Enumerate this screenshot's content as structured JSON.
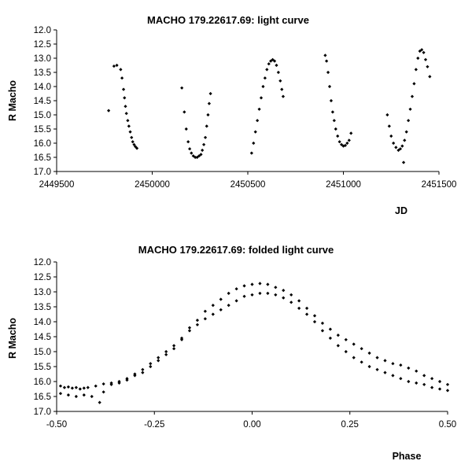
{
  "chart_data": [
    {
      "type": "scatter",
      "title": "MACHO 179.22617.69: light curve",
      "xlabel": "JD",
      "ylabel": "R Macho",
      "xlim": [
        2449500,
        2451500
      ],
      "ylim": [
        12.0,
        17.0
      ],
      "y_inverted": true,
      "grid": false,
      "legend": "none",
      "marker_color": "#000000",
      "xticks": [
        "2449500",
        "2450000",
        "2450500",
        "2451000",
        "2451500"
      ],
      "yticks": [
        "12.0",
        "12.5",
        "13.0",
        "13.5",
        "14.0",
        "14.5",
        "15.0",
        "15.5",
        "16.0",
        "16.5",
        "17.0"
      ],
      "series": [
        {
          "points": [
            [
              2449772,
              14.85
            ],
            [
              2449800,
              13.28
            ],
            [
              2449815,
              13.25
            ],
            [
              2449835,
              13.4
            ],
            [
              2449842,
              13.7
            ],
            [
              2449850,
              14.1
            ],
            [
              2449855,
              14.4
            ],
            [
              2449860,
              14.7
            ],
            [
              2449865,
              14.95
            ],
            [
              2449872,
              15.2
            ],
            [
              2449878,
              15.4
            ],
            [
              2449885,
              15.6
            ],
            [
              2449892,
              15.8
            ],
            [
              2449898,
              15.95
            ],
            [
              2449905,
              16.05
            ],
            [
              2449912,
              16.12
            ],
            [
              2449920,
              16.18
            ],
            [
              2450155,
              14.05
            ],
            [
              2450168,
              14.9
            ],
            [
              2450178,
              15.5
            ],
            [
              2450188,
              15.95
            ],
            [
              2450196,
              16.2
            ],
            [
              2450205,
              16.35
            ],
            [
              2450215,
              16.45
            ],
            [
              2450225,
              16.5
            ],
            [
              2450235,
              16.5
            ],
            [
              2450245,
              16.45
            ],
            [
              2450255,
              16.4
            ],
            [
              2450262,
              16.25
            ],
            [
              2450270,
              16.05
            ],
            [
              2450278,
              15.8
            ],
            [
              2450285,
              15.4
            ],
            [
              2450292,
              15.0
            ],
            [
              2450298,
              14.6
            ],
            [
              2450305,
              14.25
            ],
            [
              2450520,
              16.35
            ],
            [
              2450530,
              16.0
            ],
            [
              2450540,
              15.6
            ],
            [
              2450550,
              15.2
            ],
            [
              2450560,
              14.8
            ],
            [
              2450570,
              14.4
            ],
            [
              2450580,
              14.0
            ],
            [
              2450590,
              13.7
            ],
            [
              2450600,
              13.4
            ],
            [
              2450610,
              13.2
            ],
            [
              2450620,
              13.1
            ],
            [
              2450630,
              13.05
            ],
            [
              2450640,
              13.1
            ],
            [
              2450650,
              13.25
            ],
            [
              2450660,
              13.5
            ],
            [
              2450670,
              13.8
            ],
            [
              2450678,
              14.1
            ],
            [
              2450685,
              14.35
            ],
            [
              2450905,
              12.9
            ],
            [
              2450912,
              13.1
            ],
            [
              2450920,
              13.5
            ],
            [
              2450928,
              14.0
            ],
            [
              2450936,
              14.5
            ],
            [
              2450944,
              14.9
            ],
            [
              2450952,
              15.2
            ],
            [
              2450960,
              15.5
            ],
            [
              2450970,
              15.75
            ],
            [
              2450980,
              15.95
            ],
            [
              2450990,
              16.05
            ],
            [
              2451000,
              16.1
            ],
            [
              2451010,
              16.08
            ],
            [
              2451020,
              16.0
            ],
            [
              2451030,
              15.9
            ],
            [
              2451040,
              15.65
            ],
            [
              2451230,
              15.0
            ],
            [
              2451240,
              15.4
            ],
            [
              2451250,
              15.75
            ],
            [
              2451262,
              16.0
            ],
            [
              2451275,
              16.15
            ],
            [
              2451288,
              16.25
            ],
            [
              2451298,
              16.2
            ],
            [
              2451308,
              16.1
            ],
            [
              2451315,
              16.68
            ],
            [
              2451320,
              15.9
            ],
            [
              2451330,
              15.6
            ],
            [
              2451340,
              15.2
            ],
            [
              2451350,
              14.8
            ],
            [
              2451360,
              14.35
            ],
            [
              2451370,
              13.9
            ],
            [
              2451380,
              13.4
            ],
            [
              2451390,
              13.0
            ],
            [
              2451400,
              12.75
            ],
            [
              2451410,
              12.7
            ],
            [
              2451420,
              12.8
            ],
            [
              2451430,
              13.05
            ],
            [
              2451440,
              13.3
            ],
            [
              2451452,
              13.65
            ]
          ]
        }
      ]
    },
    {
      "type": "scatter",
      "title": "MACHO 179.22617.69: folded light curve",
      "xlabel": "Phase",
      "ylabel": "R Macho",
      "xlim": [
        -0.5,
        0.5
      ],
      "ylim": [
        12.0,
        17.0
      ],
      "y_inverted": true,
      "grid": false,
      "legend": "none",
      "marker_color": "#000000",
      "xticks": [
        "-0.50",
        "-0.25",
        "0.00",
        "0.25",
        "0.50"
      ],
      "yticks": [
        "12.0",
        "12.5",
        "13.0",
        "13.5",
        "14.0",
        "14.5",
        "15.0",
        "15.5",
        "16.0",
        "16.5",
        "17.0"
      ],
      "series": [
        {
          "points": [
            [
              -0.49,
              16.15
            ],
            [
              -0.48,
              16.2
            ],
            [
              -0.47,
              16.18
            ],
            [
              -0.46,
              16.22
            ],
            [
              -0.45,
              16.2
            ],
            [
              -0.44,
              16.25
            ],
            [
              -0.43,
              16.22
            ],
            [
              -0.42,
              16.2
            ],
            [
              -0.4,
              16.15
            ],
            [
              -0.38,
              16.08
            ],
            [
              -0.36,
              16.05
            ],
            [
              -0.34,
              16.0
            ],
            [
              -0.32,
              15.9
            ],
            [
              -0.3,
              15.75
            ],
            [
              -0.28,
              15.6
            ],
            [
              -0.26,
              15.4
            ],
            [
              -0.24,
              15.2
            ],
            [
              -0.22,
              15.0
            ],
            [
              -0.2,
              14.8
            ],
            [
              -0.18,
              14.55
            ],
            [
              -0.16,
              14.3
            ],
            [
              -0.14,
              14.1
            ],
            [
              -0.12,
              13.9
            ],
            [
              -0.1,
              13.75
            ],
            [
              -0.08,
              13.6
            ],
            [
              -0.06,
              13.45
            ],
            [
              -0.04,
              13.3
            ],
            [
              -0.02,
              13.15
            ],
            [
              0.0,
              13.1
            ],
            [
              0.02,
              13.05
            ],
            [
              0.04,
              13.05
            ],
            [
              0.06,
              13.1
            ],
            [
              0.08,
              13.2
            ],
            [
              0.1,
              13.35
            ],
            [
              0.12,
              13.55
            ],
            [
              0.14,
              13.75
            ],
            [
              0.16,
              14.0
            ],
            [
              0.18,
              14.3
            ],
            [
              0.2,
              14.55
            ],
            [
              0.22,
              14.8
            ],
            [
              0.24,
              15.0
            ],
            [
              0.26,
              15.2
            ],
            [
              0.28,
              15.35
            ],
            [
              0.3,
              15.5
            ],
            [
              0.32,
              15.6
            ],
            [
              0.34,
              15.7
            ],
            [
              0.36,
              15.8
            ],
            [
              0.38,
              15.9
            ],
            [
              0.4,
              16.0
            ],
            [
              0.42,
              16.05
            ],
            [
              0.44,
              16.1
            ],
            [
              0.46,
              16.2
            ],
            [
              0.48,
              16.25
            ],
            [
              0.5,
              16.3
            ],
            [
              -0.49,
              16.4
            ],
            [
              -0.47,
              16.45
            ],
            [
              -0.45,
              16.5
            ],
            [
              -0.43,
              16.45
            ],
            [
              -0.41,
              16.5
            ],
            [
              -0.39,
              16.7
            ],
            [
              -0.38,
              16.35
            ],
            [
              -0.36,
              16.1
            ],
            [
              -0.34,
              16.05
            ],
            [
              -0.32,
              15.95
            ],
            [
              -0.3,
              15.8
            ],
            [
              -0.28,
              15.7
            ],
            [
              -0.26,
              15.5
            ],
            [
              -0.24,
              15.3
            ],
            [
              -0.22,
              15.1
            ],
            [
              -0.2,
              14.9
            ],
            [
              -0.18,
              14.6
            ],
            [
              -0.16,
              14.2
            ],
            [
              -0.14,
              13.95
            ],
            [
              -0.12,
              13.65
            ],
            [
              -0.1,
              13.45
            ],
            [
              -0.08,
              13.25
            ],
            [
              -0.06,
              13.05
            ],
            [
              -0.04,
              12.9
            ],
            [
              -0.02,
              12.8
            ],
            [
              0.0,
              12.75
            ],
            [
              0.02,
              12.72
            ],
            [
              0.04,
              12.75
            ],
            [
              0.06,
              12.85
            ],
            [
              0.08,
              12.95
            ],
            [
              0.1,
              13.1
            ],
            [
              0.12,
              13.3
            ],
            [
              0.14,
              13.55
            ],
            [
              0.16,
              13.8
            ],
            [
              0.18,
              14.05
            ],
            [
              0.2,
              14.25
            ],
            [
              0.22,
              14.45
            ],
            [
              0.24,
              14.6
            ],
            [
              0.26,
              14.75
            ],
            [
              0.28,
              14.9
            ],
            [
              0.3,
              15.05
            ],
            [
              0.32,
              15.2
            ],
            [
              0.34,
              15.3
            ],
            [
              0.36,
              15.4
            ],
            [
              0.38,
              15.45
            ],
            [
              0.4,
              15.55
            ],
            [
              0.42,
              15.65
            ],
            [
              0.44,
              15.8
            ],
            [
              0.46,
              15.9
            ],
            [
              0.48,
              16.0
            ],
            [
              0.5,
              16.1
            ]
          ]
        }
      ]
    }
  ]
}
